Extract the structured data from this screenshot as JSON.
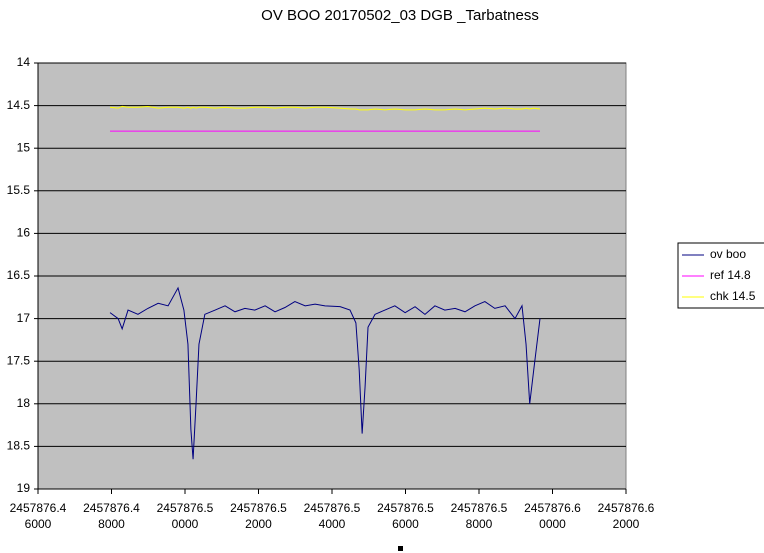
{
  "chart_data": {
    "type": "line",
    "title": "OV BOO 20170502_03 DGB _Tarbatness",
    "x": [
      2457876.4796,
      2457876.4818,
      2457876.4829,
      2457876.4845,
      2457876.4872,
      2457876.4899,
      2457876.4927,
      2457876.4954,
      2457876.4981,
      2457876.4997,
      2457876.5008,
      2457876.5016,
      2457876.5022,
      2457876.503,
      2457876.5038,
      2457876.5054,
      2457876.5082,
      2457876.5109,
      2457876.5136,
      2457876.5163,
      2457876.519,
      2457876.5218,
      2457876.5245,
      2457876.5272,
      2457876.5299,
      2457876.5327,
      2457876.5354,
      2457876.5381,
      2457876.5422,
      2457876.5449,
      2457876.5465,
      2457876.5474,
      2457876.5482,
      2457876.549,
      2457876.5498,
      2457876.5517,
      2457876.5544,
      2457876.5571,
      2457876.5599,
      2457876.5626,
      2457876.5653,
      2457876.568,
      2457876.5707,
      2457876.5735,
      2457876.5762,
      2457876.5789,
      2457876.5816,
      2457876.5843,
      2457876.5871,
      2457876.5898,
      2457876.5917,
      2457876.5928,
      2457876.5938,
      2457876.5949,
      2457876.5966
    ],
    "series": [
      {
        "name": "ov boo",
        "color": "#000080",
        "values": [
          16.93,
          17.0,
          17.12,
          16.9,
          16.95,
          16.88,
          16.82,
          16.85,
          16.64,
          16.9,
          17.3,
          18.3,
          18.65,
          18.0,
          17.3,
          16.95,
          16.9,
          16.85,
          16.92,
          16.88,
          16.9,
          16.85,
          16.92,
          16.87,
          16.8,
          16.85,
          16.83,
          16.85,
          16.86,
          16.9,
          17.05,
          17.6,
          18.35,
          17.8,
          17.1,
          16.95,
          16.9,
          16.85,
          16.93,
          16.86,
          16.95,
          16.85,
          16.9,
          16.88,
          16.92,
          16.85,
          16.8,
          16.88,
          16.85,
          17.0,
          16.85,
          17.3,
          18.0,
          17.6,
          17.0
        ]
      },
      {
        "name": "ref 14.8",
        "color": "#ff00ff",
        "values": [
          14.8,
          14.8,
          14.8,
          14.8,
          14.8,
          14.8,
          14.8,
          14.8,
          14.8,
          14.8,
          14.8,
          14.8,
          14.8,
          14.8,
          14.8,
          14.8,
          14.8,
          14.8,
          14.8,
          14.8,
          14.8,
          14.8,
          14.8,
          14.8,
          14.8,
          14.8,
          14.8,
          14.8,
          14.8,
          14.8,
          14.8,
          14.8,
          14.8,
          14.8,
          14.8,
          14.8,
          14.8,
          14.8,
          14.8,
          14.8,
          14.8,
          14.8,
          14.8,
          14.8,
          14.8,
          14.8,
          14.8,
          14.8,
          14.8,
          14.8,
          14.8,
          14.8,
          14.8,
          14.8,
          14.8
        ]
      },
      {
        "name": "chk 14.5",
        "color": "#ffff00",
        "values": [
          14.52,
          14.53,
          14.51,
          14.52,
          14.52,
          14.51,
          14.53,
          14.52,
          14.52,
          14.53,
          14.52,
          14.53,
          14.52,
          14.53,
          14.52,
          14.52,
          14.53,
          14.52,
          14.53,
          14.53,
          14.52,
          14.52,
          14.53,
          14.52,
          14.52,
          14.53,
          14.52,
          14.52,
          14.53,
          14.54,
          14.54,
          14.55,
          14.55,
          14.55,
          14.55,
          14.54,
          14.55,
          14.54,
          14.55,
          14.55,
          14.54,
          14.55,
          14.55,
          14.54,
          14.55,
          14.54,
          14.53,
          14.54,
          14.53,
          14.54,
          14.54,
          14.53,
          14.54,
          14.53,
          14.54
        ]
      }
    ],
    "xlim": [
      2457876.46,
      2457876.62
    ],
    "xticks": [
      {
        "value": 2457876.46,
        "label": "2457876.46000"
      },
      {
        "value": 2457876.48,
        "label": "2457876.48000"
      },
      {
        "value": 2457876.5,
        "label": "2457876.50000"
      },
      {
        "value": 2457876.52,
        "label": "2457876.52000"
      },
      {
        "value": 2457876.54,
        "label": "2457876.54000"
      },
      {
        "value": 2457876.56,
        "label": "2457876.56000"
      },
      {
        "value": 2457876.58,
        "label": "2457876.58000"
      },
      {
        "value": 2457876.6,
        "label": "2457876.60000"
      },
      {
        "value": 2457876.62,
        "label": "2457876.62000"
      }
    ],
    "ylim": [
      14,
      19
    ],
    "yticks": [
      14,
      14.5,
      15,
      15.5,
      16,
      16.5,
      17,
      17.5,
      18,
      18.5,
      19
    ],
    "y_inverted": true,
    "grid": true,
    "plot_background": "#c0c0c0",
    "legend": "right"
  }
}
